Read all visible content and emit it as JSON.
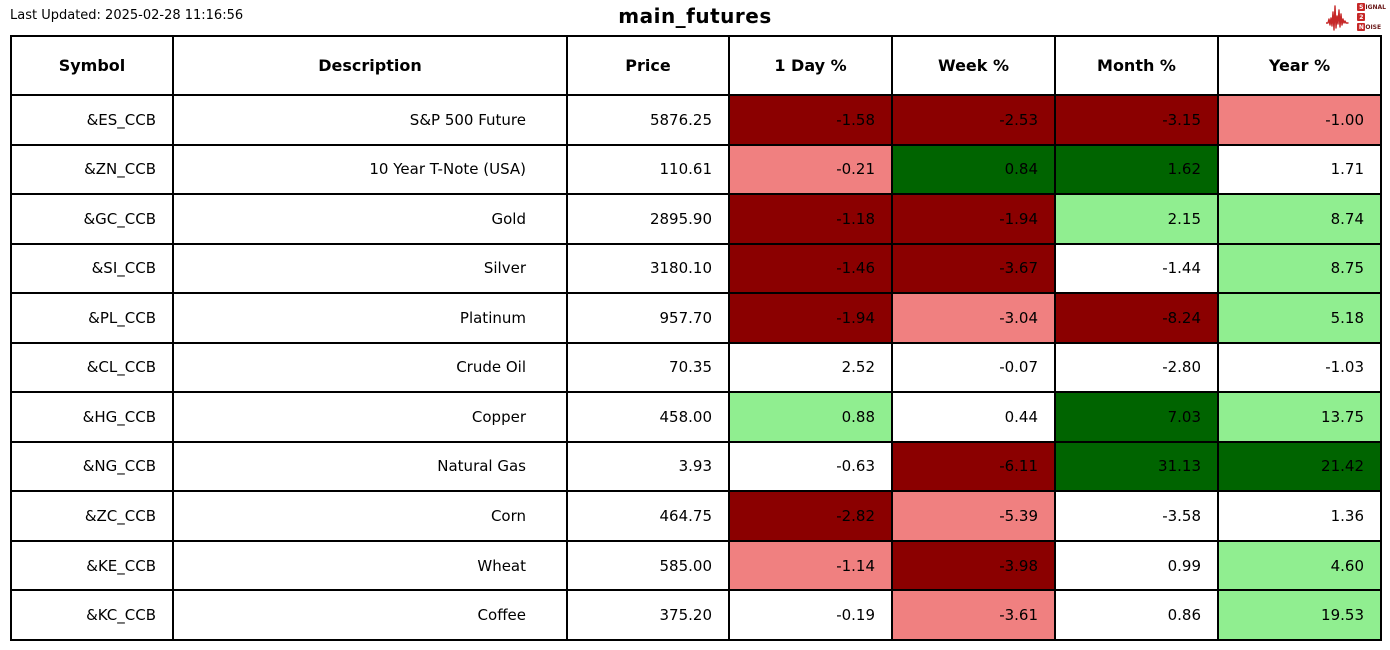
{
  "header": {
    "last_updated": "Last Updated: 2025-02-28 11:16:56",
    "title": "main_futures",
    "logo": {
      "s": "S",
      "ignal": "IGNAL",
      "two": "2",
      "n": "N",
      "oise": "OISE"
    }
  },
  "colors": {
    "darkred": "#8b0000",
    "lightcoral": "#f08080",
    "darkgreen": "#006400",
    "lightgreen": "#90ee90",
    "white": "#ffffff",
    "logo_red": "#c62828"
  },
  "chart_data": {
    "type": "table",
    "title": "main_futures",
    "columns": [
      "Symbol",
      "Description",
      "Price",
      "1 Day %",
      "Week %",
      "Month %",
      "Year %"
    ],
    "rows": [
      {
        "symbol": "&ES_CCB",
        "description": "S&P 500 Future",
        "price": "5876.25",
        "changes": [
          {
            "value": "-1.58",
            "bg": "darkred"
          },
          {
            "value": "-2.53",
            "bg": "darkred"
          },
          {
            "value": "-3.15",
            "bg": "darkred"
          },
          {
            "value": "-1.00",
            "bg": "lightcoral"
          }
        ]
      },
      {
        "symbol": "&ZN_CCB",
        "description": "10 Year T-Note (USA)",
        "price": "110.61",
        "changes": [
          {
            "value": "-0.21",
            "bg": "lightcoral"
          },
          {
            "value": "0.84",
            "bg": "darkgreen"
          },
          {
            "value": "1.62",
            "bg": "darkgreen"
          },
          {
            "value": "1.71",
            "bg": "white"
          }
        ]
      },
      {
        "symbol": "&GC_CCB",
        "description": "Gold",
        "price": "2895.90",
        "changes": [
          {
            "value": "-1.18",
            "bg": "darkred"
          },
          {
            "value": "-1.94",
            "bg": "darkred"
          },
          {
            "value": "2.15",
            "bg": "lightgreen"
          },
          {
            "value": "8.74",
            "bg": "lightgreen"
          }
        ]
      },
      {
        "symbol": "&SI_CCB",
        "description": "Silver",
        "price": "3180.10",
        "changes": [
          {
            "value": "-1.46",
            "bg": "darkred"
          },
          {
            "value": "-3.67",
            "bg": "darkred"
          },
          {
            "value": "-1.44",
            "bg": "white"
          },
          {
            "value": "8.75",
            "bg": "lightgreen"
          }
        ]
      },
      {
        "symbol": "&PL_CCB",
        "description": "Platinum",
        "price": "957.70",
        "changes": [
          {
            "value": "-1.94",
            "bg": "darkred"
          },
          {
            "value": "-3.04",
            "bg": "lightcoral"
          },
          {
            "value": "-8.24",
            "bg": "darkred"
          },
          {
            "value": "5.18",
            "bg": "lightgreen"
          }
        ]
      },
      {
        "symbol": "&CL_CCB",
        "description": "Crude Oil",
        "price": "70.35",
        "changes": [
          {
            "value": "2.52",
            "bg": "white"
          },
          {
            "value": "-0.07",
            "bg": "white"
          },
          {
            "value": "-2.80",
            "bg": "white"
          },
          {
            "value": "-1.03",
            "bg": "white"
          }
        ]
      },
      {
        "symbol": "&HG_CCB",
        "description": "Copper",
        "price": "458.00",
        "changes": [
          {
            "value": "0.88",
            "bg": "lightgreen"
          },
          {
            "value": "0.44",
            "bg": "white"
          },
          {
            "value": "7.03",
            "bg": "darkgreen"
          },
          {
            "value": "13.75",
            "bg": "lightgreen"
          }
        ]
      },
      {
        "symbol": "&NG_CCB",
        "description": "Natural Gas",
        "price": "3.93",
        "changes": [
          {
            "value": "-0.63",
            "bg": "white"
          },
          {
            "value": "-6.11",
            "bg": "darkred"
          },
          {
            "value": "31.13",
            "bg": "darkgreen"
          },
          {
            "value": "21.42",
            "bg": "darkgreen"
          }
        ]
      },
      {
        "symbol": "&ZC_CCB",
        "description": "Corn",
        "price": "464.75",
        "changes": [
          {
            "value": "-2.82",
            "bg": "darkred"
          },
          {
            "value": "-5.39",
            "bg": "lightcoral"
          },
          {
            "value": "-3.58",
            "bg": "white"
          },
          {
            "value": "1.36",
            "bg": "white"
          }
        ]
      },
      {
        "symbol": "&KE_CCB",
        "description": "Wheat",
        "price": "585.00",
        "changes": [
          {
            "value": "-1.14",
            "bg": "lightcoral"
          },
          {
            "value": "-3.98",
            "bg": "darkred"
          },
          {
            "value": "0.99",
            "bg": "white"
          },
          {
            "value": "4.60",
            "bg": "lightgreen"
          }
        ]
      },
      {
        "symbol": "&KC_CCB",
        "description": "Coffee",
        "price": "375.20",
        "changes": [
          {
            "value": "-0.19",
            "bg": "white"
          },
          {
            "value": "-3.61",
            "bg": "lightcoral"
          },
          {
            "value": "0.86",
            "bg": "white"
          },
          {
            "value": "19.53",
            "bg": "lightgreen"
          }
        ]
      }
    ]
  }
}
